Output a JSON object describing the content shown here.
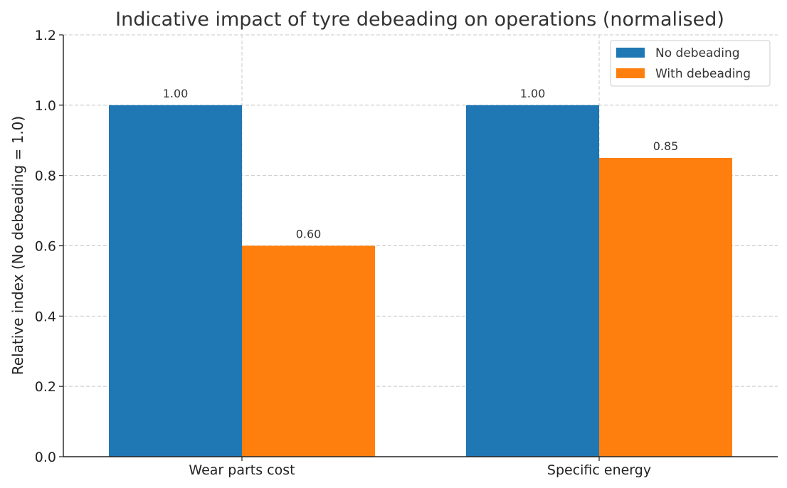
{
  "chart_data": {
    "type": "bar",
    "title": "Indicative impact of tyre debeading on operations (normalised)",
    "xlabel": "",
    "ylabel": "Relative index (No debeading = 1.0)",
    "categories": [
      "Wear parts cost",
      "Specific energy"
    ],
    "series": [
      {
        "name": "No debeading",
        "values": [
          1.0,
          1.0
        ],
        "labels": [
          "1.00",
          "1.00"
        ],
        "color": "#1f77b4"
      },
      {
        "name": "With debeading",
        "values": [
          0.6,
          0.85
        ],
        "labels": [
          "0.60",
          "0.85"
        ],
        "color": "#ff7f0e"
      }
    ],
    "ylim": [
      0,
      1.2
    ],
    "yticks": [
      "0.0",
      "0.2",
      "0.4",
      "0.6",
      "0.8",
      "1.0",
      "1.2"
    ],
    "grid": true,
    "legend_position": "top-right"
  }
}
